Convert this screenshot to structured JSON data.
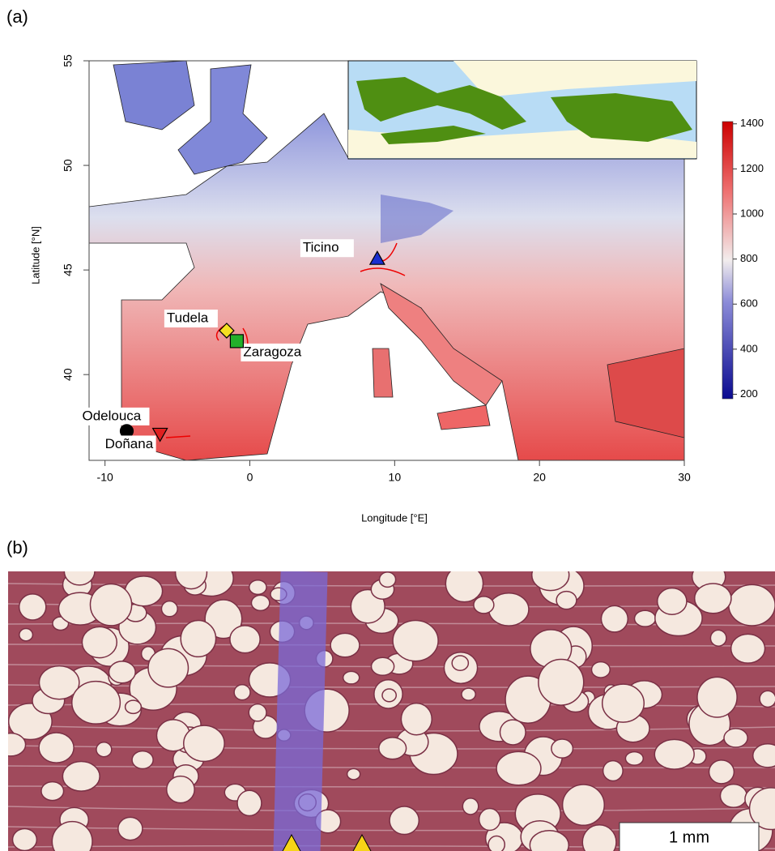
{
  "panel_a": {
    "label": "(a)",
    "xlabel": "Longitude [°E]",
    "ylabel": "Latitude [°N]",
    "xlim": [
      -11.1,
      30
    ],
    "ylim": [
      35.9,
      55
    ],
    "xticks": [
      -10,
      0,
      10,
      20,
      30
    ],
    "yticks": [
      40,
      45,
      50,
      55
    ],
    "colorbar": {
      "lim": [
        180,
        1410
      ],
      "ticks": [
        200,
        400,
        600,
        800,
        1000,
        1200,
        1400
      ]
    },
    "sites": [
      {
        "name": "Ticino",
        "lon": 8.8,
        "lat": 45.5,
        "shape": "triangle-up",
        "color": "#1a2fd0"
      },
      {
        "name": "Tudela",
        "lon": -1.6,
        "lat": 42.1,
        "shape": "diamond",
        "color": "#f5e020"
      },
      {
        "name": "Zaragoza",
        "lon": -0.9,
        "lat": 41.6,
        "shape": "square",
        "color": "#22b02a"
      },
      {
        "name": "Odelouca",
        "lon": -8.5,
        "lat": 37.3,
        "shape": "circle",
        "color": "#000000"
      },
      {
        "name": "Doñana",
        "lon": -6.2,
        "lat": 37.2,
        "shape": "triangle-down",
        "color": "#e02020"
      }
    ]
  },
  "panel_b": {
    "label": "(b)",
    "scale_label": "1 mm"
  }
}
